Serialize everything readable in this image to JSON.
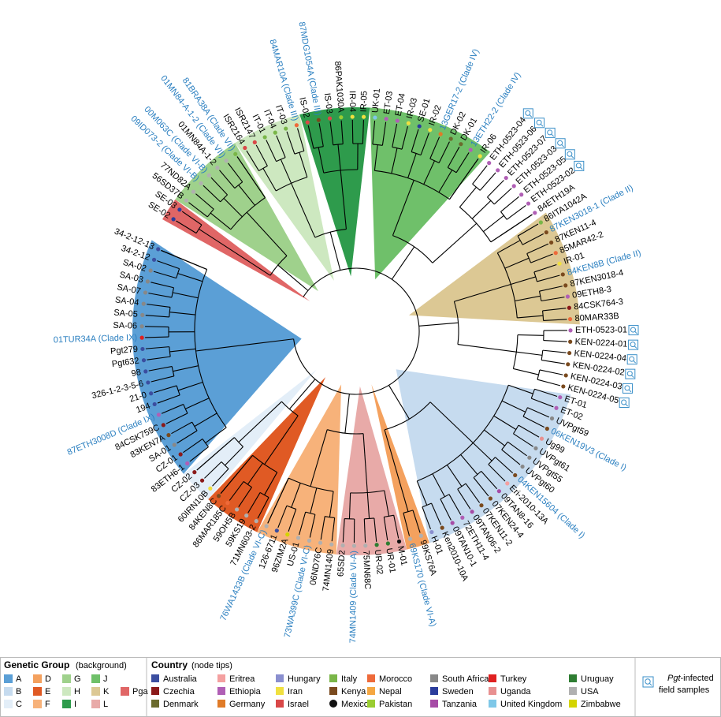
{
  "tree": {
    "tips": [
      {
        "label": "SE-02",
        "country": "Sweden",
        "group": "Pga"
      },
      {
        "label": "SE-03",
        "country": "Sweden",
        "group": "Pga"
      },
      {
        "label": "56SD37B",
        "country": "USA",
        "group": "G"
      },
      {
        "label": "77ND82A",
        "country": "USA",
        "group": "G"
      },
      {
        "label": "09ID073-2 (Clade VI-B)",
        "country": "USA",
        "group": "G",
        "color": "#2a7fc0"
      },
      {
        "label": "00M063C (Clade VI-B)",
        "country": "USA",
        "group": "G",
        "color": "#2a7fc0"
      },
      {
        "label": "01MN84A-1-2",
        "country": "USA",
        "group": "G"
      },
      {
        "label": "01MN84-A-1-2 (Clade VII)",
        "country": "USA",
        "group": "G",
        "color": "#2a7fc0"
      },
      {
        "label": "81BRA38A (Clade VII)",
        "country": "Italy",
        "group": "G",
        "color": "#2a7fc0"
      },
      {
        "label": "ISR2164",
        "country": "Israel",
        "group": "H"
      },
      {
        "label": "ISR2147",
        "country": "Israel",
        "group": "H"
      },
      {
        "label": "IT-01",
        "country": "Italy",
        "group": "H"
      },
      {
        "label": "IT-04",
        "country": "Italy",
        "group": "H"
      },
      {
        "label": "IT-03",
        "country": "Italy",
        "group": "H"
      },
      {
        "label": "84MAR10A (Clade III)",
        "country": "Morocco",
        "group": "H",
        "color": "#2a7fc0"
      },
      {
        "label": "IS-02",
        "country": "Israel",
        "group": "I"
      },
      {
        "label": "87MDG1054A (Clade III)",
        "country": "Kenya",
        "group": "I",
        "color": "#2a7fc0"
      },
      {
        "label": "IS-03",
        "country": "Israel",
        "group": "I"
      },
      {
        "label": "86PAK1030A",
        "country": "Pakistan",
        "group": "I"
      },
      {
        "label": "IR-04",
        "country": "Iran",
        "group": "I"
      },
      {
        "label": "IR-05",
        "country": "Iran",
        "group": "I"
      },
      {
        "label": "UK-01",
        "country": "United Kingdom",
        "group": "J"
      },
      {
        "label": "ET-03",
        "country": "Ethiopia",
        "group": "J"
      },
      {
        "label": "ET-04",
        "country": "Ethiopia",
        "group": "J"
      },
      {
        "label": "IR-03",
        "country": "Iran",
        "group": "J"
      },
      {
        "label": "SE-01",
        "country": "Sweden",
        "group": "J"
      },
      {
        "label": "IR-02",
        "country": "Iran",
        "group": "J"
      },
      {
        "label": "13GER17-2 (Clade IV)",
        "country": "Germany",
        "group": "J",
        "color": "#2a7fc0"
      },
      {
        "label": "DK-02",
        "country": "Denmark",
        "group": "J"
      },
      {
        "label": "DK-01",
        "country": "Denmark",
        "group": "J"
      },
      {
        "label": "13ETH22-2 (Clade IV)",
        "country": "Ethiopia",
        "group": "J",
        "color": "#2a7fc0"
      },
      {
        "label": "IR-06",
        "country": "Iran",
        "group": "J"
      },
      {
        "label": "ETH-0523-04",
        "country": "Ethiopia",
        "field_sample": true
      },
      {
        "label": "ETH-0523-06",
        "country": "Ethiopia",
        "field_sample": true
      },
      {
        "label": "ETH-0523-07",
        "country": "Ethiopia",
        "field_sample": true
      },
      {
        "label": "ETH-0523-03",
        "country": "Ethiopia",
        "field_sample": true
      },
      {
        "label": "ETH-0523-05",
        "country": "Ethiopia",
        "field_sample": true
      },
      {
        "label": "ETH-0523-02",
        "country": "Ethiopia",
        "field_sample": true
      },
      {
        "label": "84ETH19A",
        "country": "Ethiopia"
      },
      {
        "label": "86ITA1042A",
        "country": "Italy",
        "group": "K"
      },
      {
        "label": "87KEN3018-1 (Clade II)",
        "country": "Kenya",
        "group": "K",
        "color": "#2a7fc0"
      },
      {
        "label": "87KEN11-4",
        "country": "Kenya",
        "group": "K"
      },
      {
        "label": "85MAR42-2",
        "country": "Morocco",
        "group": "K"
      },
      {
        "label": "IR-01",
        "country": "Iran",
        "group": "K"
      },
      {
        "label": "84KEN8B (Clade II)",
        "country": "Kenya",
        "group": "K",
        "color": "#2a7fc0"
      },
      {
        "label": "87KEN3018-4",
        "country": "Kenya",
        "group": "K"
      },
      {
        "label": "09ETH8-3",
        "country": "Ethiopia",
        "group": "K"
      },
      {
        "label": "84CSK764-3",
        "country": "Czechia",
        "group": "K"
      },
      {
        "label": "80MAR33B",
        "country": "Morocco",
        "group": "K"
      },
      {
        "label": "ETH-0523-01",
        "country": "Ethiopia",
        "field_sample": true
      },
      {
        "label": "KEN-0224-01",
        "country": "Kenya",
        "field_sample": true
      },
      {
        "label": "KEN-0224-04",
        "country": "Kenya",
        "field_sample": true
      },
      {
        "label": "KEN-0224-02",
        "country": "Kenya",
        "field_sample": true
      },
      {
        "label": "KEN-0224-03",
        "country": "Kenya",
        "field_sample": true
      },
      {
        "label": "KEN-0224-05",
        "country": "Kenya",
        "field_sample": true
      },
      {
        "label": "ET-01",
        "country": "Ethiopia",
        "group": "B"
      },
      {
        "label": "ET-02",
        "country": "Ethiopia",
        "group": "B"
      },
      {
        "label": "UVPgt59",
        "country": "South Africa",
        "group": "B"
      },
      {
        "label": "06KEN19V3 (Clade I)",
        "country": "Kenya",
        "group": "B",
        "color": "#2a7fc0"
      },
      {
        "label": "Ug99",
        "country": "Uganda",
        "group": "B"
      },
      {
        "label": "UVPgt61",
        "country": "South Africa",
        "group": "B"
      },
      {
        "label": "UVPgt55",
        "country": "South Africa",
        "group": "B"
      },
      {
        "label": "UVPgt60",
        "country": "South Africa",
        "group": "B"
      },
      {
        "label": "04KEN15604 (Clade I)",
        "country": "Kenya",
        "group": "B",
        "color": "#2a7fc0"
      },
      {
        "label": "Eri-2010-13A",
        "country": "Eritrea",
        "group": "B"
      },
      {
        "label": "09TAN8-16",
        "country": "Tanzania",
        "group": "B"
      },
      {
        "label": "07KEN24-4",
        "country": "Kenya",
        "group": "B"
      },
      {
        "label": "07KEN11-2",
        "country": "Kenya",
        "group": "B"
      },
      {
        "label": "09TAN06-2",
        "country": "Tanzania",
        "group": "B"
      },
      {
        "label": "72ETH11-4",
        "country": "Ethiopia",
        "group": "B"
      },
      {
        "label": "09TAN10-1",
        "country": "Tanzania",
        "group": "B"
      },
      {
        "label": "Ken2010-10A",
        "country": "Kenya",
        "group": "B"
      },
      {
        "label": "H-01",
        "country": "Hungary",
        "group": "B"
      },
      {
        "label": "99KS76A",
        "country": "USA",
        "group": "D"
      },
      {
        "label": "69KS170 (Clade VI-A)",
        "country": "USA",
        "group": "D",
        "color": "#2a7fc0"
      },
      {
        "label": "M-01",
        "country": "Mexico",
        "group": "L"
      },
      {
        "label": "UR-01",
        "country": "Uruguay",
        "group": "L"
      },
      {
        "label": "UR-02",
        "country": "Uruguay",
        "group": "L"
      },
      {
        "label": "75MN68C",
        "country": "USA",
        "group": "L"
      },
      {
        "label": "74MN1409 (Clade VI-A)",
        "country": "USA",
        "group": "L",
        "color": "#2a7fc0"
      },
      {
        "label": "65SD2",
        "country": "USA",
        "group": "L"
      },
      {
        "label": "74MN1409",
        "country": "USA",
        "group": "F"
      },
      {
        "label": "06ND76C",
        "country": "USA",
        "group": "F"
      },
      {
        "label": "73WA399C (Clade VI-C)",
        "country": "USA",
        "group": "F",
        "color": "#2a7fc0"
      },
      {
        "label": "US-01",
        "country": "USA",
        "group": "F"
      },
      {
        "label": "96ZIM2A",
        "country": "Zimbabwe",
        "group": "F"
      },
      {
        "label": "126-6711",
        "country": "Australia",
        "group": "F"
      },
      {
        "label": "76WA1433B (Clade VI-C)",
        "country": "USA",
        "group": "F",
        "color": "#2a7fc0"
      },
      {
        "label": "71MN603-2",
        "country": "USA",
        "group": "E"
      },
      {
        "label": "59KS19",
        "country": "USA",
        "group": "E"
      },
      {
        "label": "59OH5B",
        "country": "USA",
        "group": "E"
      },
      {
        "label": "86MAR185C",
        "country": "Morocco",
        "group": "E"
      },
      {
        "label": "84KEN8C",
        "country": "Kenya",
        "group": "E"
      },
      {
        "label": "60IRN10B",
        "country": "Iran",
        "group": "C"
      },
      {
        "label": "CZ-03",
        "country": "Czechia",
        "group": "C"
      },
      {
        "label": "CZ-02",
        "country": "Czechia",
        "group": "C"
      },
      {
        "label": "83ETH6-1",
        "country": "Ethiopia",
        "group": "A"
      },
      {
        "label": "CZ-01",
        "country": "Czechia",
        "group": "A"
      },
      {
        "label": "SA-01",
        "country": "South Africa",
        "group": "A"
      },
      {
        "label": "83KEN7A",
        "country": "Kenya",
        "group": "A"
      },
      {
        "label": "84CSK759C",
        "country": "Czechia",
        "group": "A"
      },
      {
        "label": "87ETH3008D (Clade IX)",
        "country": "Ethiopia",
        "group": "A",
        "color": "#2a7fc0"
      },
      {
        "label": "194",
        "country": "Australia",
        "group": "A"
      },
      {
        "label": "21-0",
        "country": "Australia",
        "group": "A"
      },
      {
        "label": "326-1-2-3-5-6",
        "country": "Australia",
        "group": "A"
      },
      {
        "label": "98",
        "country": "Australia",
        "group": "A"
      },
      {
        "label": "Pgt632",
        "country": "Australia",
        "group": "A"
      },
      {
        "label": "Pgt279",
        "country": "Australia",
        "group": "A"
      },
      {
        "label": "01TUR34A (Clade IX)",
        "country": "Turkey",
        "group": "A",
        "color": "#2a7fc0"
      },
      {
        "label": "SA-06",
        "country": "South Africa",
        "group": "A"
      },
      {
        "label": "SA-05",
        "country": "South Africa",
        "group": "A"
      },
      {
        "label": "SA-04",
        "country": "South Africa",
        "group": "A"
      },
      {
        "label": "SA-07",
        "country": "South Africa",
        "group": "A"
      },
      {
        "label": "SA-03",
        "country": "South Africa",
        "group": "A"
      },
      {
        "label": "SA-02",
        "country": "South Africa",
        "group": "A"
      },
      {
        "label": "34-2-12",
        "country": "Australia",
        "group": "A"
      },
      {
        "label": "34-2-12-13",
        "country": "Australia",
        "group": "A"
      }
    ]
  },
  "legend": {
    "group_title": "Genetic Group",
    "group_note": "(background)",
    "groups": [
      {
        "name": "A",
        "color": "#5b9fd6"
      },
      {
        "name": "B",
        "color": "#c6dbef"
      },
      {
        "name": "C",
        "color": "#e3eef8"
      },
      {
        "name": "D",
        "color": "#f4a15e"
      },
      {
        "name": "E",
        "color": "#e05a24"
      },
      {
        "name": "F",
        "color": "#f7b27a"
      },
      {
        "name": "G",
        "color": "#9fd18c"
      },
      {
        "name": "H",
        "color": "#cde8c0"
      },
      {
        "name": "I",
        "color": "#2e9b4c"
      },
      {
        "name": "J",
        "color": "#6fc06a"
      },
      {
        "name": "K",
        "color": "#dcc894"
      },
      {
        "name": "L",
        "color": "#e8aaa8"
      },
      {
        "name": "Pga",
        "color": "#e06666"
      }
    ],
    "country_title": "Country",
    "country_note": "(node tips)",
    "countries": [
      {
        "name": "Australia",
        "color": "#3b4ea0"
      },
      {
        "name": "Czechia",
        "color": "#8b1a1a"
      },
      {
        "name": "Denmark",
        "color": "#6b6b2e"
      },
      {
        "name": "Eritrea",
        "color": "#f4a0a0"
      },
      {
        "name": "Ethiopia",
        "color": "#b05fb5"
      },
      {
        "name": "Germany",
        "color": "#e07b28"
      },
      {
        "name": "Hungary",
        "color": "#8a8fcf"
      },
      {
        "name": "Iran",
        "color": "#f0e040"
      },
      {
        "name": "Israel",
        "color": "#d94848"
      },
      {
        "name": "Italy",
        "color": "#7ab648"
      },
      {
        "name": "Kenya",
        "color": "#7a4a1e"
      },
      {
        "name": "Mexico",
        "color": "#111111"
      },
      {
        "name": "Morocco",
        "color": "#ee6a3a"
      },
      {
        "name": "Nepal",
        "color": "#f5a742"
      },
      {
        "name": "Pakistan",
        "color": "#9acd32"
      },
      {
        "name": "South Africa",
        "color": "#888888"
      },
      {
        "name": "Sweden",
        "color": "#2b3d9c"
      },
      {
        "name": "Tanzania",
        "color": "#a64ca6"
      },
      {
        "name": "Turkey",
        "color": "#e02020"
      },
      {
        "name": "Uganda",
        "color": "#e89090"
      },
      {
        "name": "United Kingdom",
        "color": "#7fc8e8"
      },
      {
        "name": "Uruguay",
        "color": "#2e7d32"
      },
      {
        "name": "USA",
        "color": "#b0b0b0"
      },
      {
        "name": "Zimbabwe",
        "color": "#d4d400"
      }
    ],
    "field_label": [
      "Pgt",
      "-infected",
      "field samples"
    ]
  }
}
